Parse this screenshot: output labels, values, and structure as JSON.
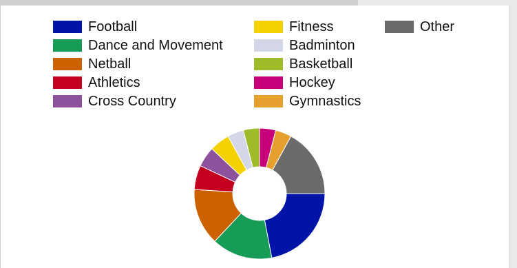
{
  "chart_data": {
    "type": "pie",
    "style": "donut",
    "legend_position": "top",
    "slices": [
      {
        "name": "Football",
        "value": 22,
        "color": "#0014a8"
      },
      {
        "name": "Dance and Movement",
        "value": 15,
        "color": "#179c58"
      },
      {
        "name": "Netball",
        "value": 14,
        "color": "#cc6100"
      },
      {
        "name": "Athletics",
        "value": 6,
        "color": "#c4001f"
      },
      {
        "name": "Cross Country",
        "value": 5,
        "color": "#8e529c"
      },
      {
        "name": "Fitness",
        "value": 5,
        "color": "#f5d100"
      },
      {
        "name": "Badminton",
        "value": 4,
        "color": "#d3d7e8"
      },
      {
        "name": "Basketball",
        "value": 4,
        "color": "#9dbb2b"
      },
      {
        "name": "Hockey",
        "value": 4,
        "color": "#c8007a"
      },
      {
        "name": "Gymnastics",
        "value": 4,
        "color": "#e5a02e"
      },
      {
        "name": "Other",
        "value": 17,
        "color": "#6b6b6b"
      }
    ]
  }
}
